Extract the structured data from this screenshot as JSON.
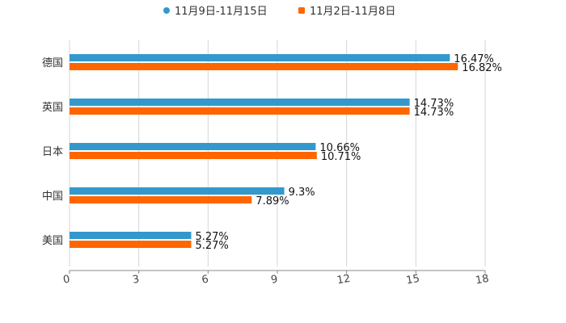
{
  "chart_data": {
    "type": "bar",
    "orientation": "horizontal",
    "title": "",
    "xlabel": "",
    "ylabel": "",
    "categories": [
      "德国",
      "英国",
      "日本",
      "中国",
      "美国"
    ],
    "series": [
      {
        "name": "11月9日-11月15日",
        "color": "#3399cc",
        "values": [
          16.47,
          14.73,
          10.66,
          9.3,
          5.27
        ],
        "labels": [
          "16.47%",
          "14.73%",
          "10.66%",
          "9.3%",
          "5.27%"
        ]
      },
      {
        "name": "11月2日-11月8日",
        "color": "#ff6600",
        "values": [
          16.82,
          14.73,
          10.71,
          7.89,
          5.27
        ],
        "labels": [
          "16.82%",
          "14.73%",
          "10.71%",
          "7.89%",
          "5.27%"
        ]
      }
    ],
    "xlim": [
      0,
      18
    ],
    "xticks": [
      "0",
      "3",
      "6",
      "9",
      "12",
      "15",
      "18"
    ],
    "grid": true,
    "legend": "top-center"
  }
}
